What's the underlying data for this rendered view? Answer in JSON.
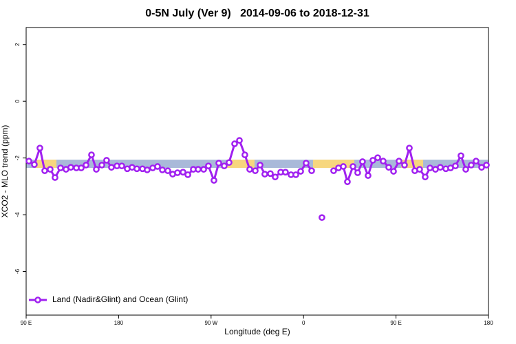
{
  "chart_data": {
    "type": "line",
    "title": "0-5N July (Ver 9)   2014-09-06 to 2018-12-31",
    "x_label": "Longitude (deg E)",
    "y_label": "XCO2 - MLO trend (ppm)",
    "xlim": [
      90,
      540
    ],
    "ylim": [
      -7.54,
      2.6
    ],
    "xticks": [
      {
        "value": 90,
        "label": "90 E"
      },
      {
        "value": 180,
        "label": "180"
      },
      {
        "value": 270,
        "label": "90 W"
      },
      {
        "value": 360,
        "label": "0"
      },
      {
        "value": 450,
        "label": "90 E"
      },
      {
        "value": 540,
        "label": "180"
      }
    ],
    "yticks": [
      -6,
      -4,
      -2,
      0,
      2
    ],
    "grid": false,
    "legend_position": "bottom-left",
    "background_band": {
      "range": [
        -2.35,
        -2.06
      ],
      "color": "#a9b9d9",
      "segments": [
        {
          "from": 99.4,
          "to": 119.5,
          "color": "#f7d77e"
        },
        {
          "from": 285.5,
          "to": 312.3,
          "color": "#f7d77e"
        },
        {
          "from": 369.2,
          "to": 409.4,
          "color": "#f7d77e"
        },
        {
          "from": 455,
          "to": 476.4,
          "color": "#f7d77e"
        }
      ]
    },
    "x": [
      92.7,
      98.0,
      103.4,
      108.1,
      113.4,
      118.1,
      123.5,
      128.8,
      133.5,
      138.9,
      143.6,
      148.3,
      153.6,
      158.3,
      163.7,
      168.3,
      173.0,
      178.4,
      183.1,
      188.4,
      193.1,
      197.8,
      203.2,
      207.8,
      213.2,
      217.9,
      222.6,
      227.9,
      232.6,
      237.3,
      242.7,
      247.4,
      252.7,
      257.4,
      262.8,
      267.4,
      272.8,
      277.5,
      282.8,
      287.5,
      292.9,
      297.6,
      302.9,
      307.6,
      313.0,
      317.7,
      322.3,
      327.7,
      332.4,
      337.8,
      342.4,
      347.8,
      352.5,
      357.2,
      362.5,
      367.9,
      372.9,
      377.9,
      382.9,
      389.3,
      394.0,
      398.7,
      402.7,
      408.1,
      412.7,
      417.4,
      422.8,
      427.5,
      432.2,
      437.5,
      442.9,
      447.6,
      452.9,
      458.3,
      463.0,
      468.3,
      473.0,
      478.4,
      483.1,
      488.4,
      493.1,
      498.5,
      503.1,
      507.8,
      513.2,
      517.9,
      523.2,
      527.9,
      533.3,
      538.0
    ],
    "series": [
      {
        "name": "Land (Nadir&Glint) and Ocean (Glint)",
        "color": "#a020f0",
        "values": [
          -2.11,
          -2.23,
          -1.65,
          -2.45,
          -2.4,
          -2.69,
          -2.35,
          -2.4,
          -2.33,
          -2.35,
          -2.35,
          -2.25,
          -1.89,
          -2.4,
          -2.25,
          -2.08,
          -2.33,
          -2.28,
          -2.28,
          -2.38,
          -2.33,
          -2.38,
          -2.38,
          -2.42,
          -2.35,
          -2.3,
          -2.42,
          -2.45,
          -2.57,
          -2.52,
          -2.5,
          -2.59,
          -2.4,
          -2.4,
          -2.4,
          -2.28,
          -2.79,
          -2.18,
          -2.28,
          -2.16,
          -1.5,
          -1.38,
          -1.89,
          -2.4,
          -2.45,
          -2.25,
          -2.57,
          -2.55,
          -2.67,
          -2.5,
          -2.5,
          -2.59,
          -2.59,
          -2.47,
          -2.18,
          -2.45,
          null,
          -4.1,
          null,
          -2.45,
          -2.35,
          -2.3,
          -2.84,
          -2.3,
          -2.52,
          -2.13,
          -2.62,
          -2.08,
          -1.99,
          -2.11,
          -2.33,
          -2.47,
          -2.11,
          -2.25,
          -1.65,
          -2.45,
          -2.4,
          -2.67,
          -2.35,
          -2.4,
          -2.33,
          -2.38,
          -2.35,
          -2.28,
          -1.92,
          -2.4,
          -2.25,
          -2.11,
          -2.33,
          -2.25
        ]
      }
    ]
  }
}
